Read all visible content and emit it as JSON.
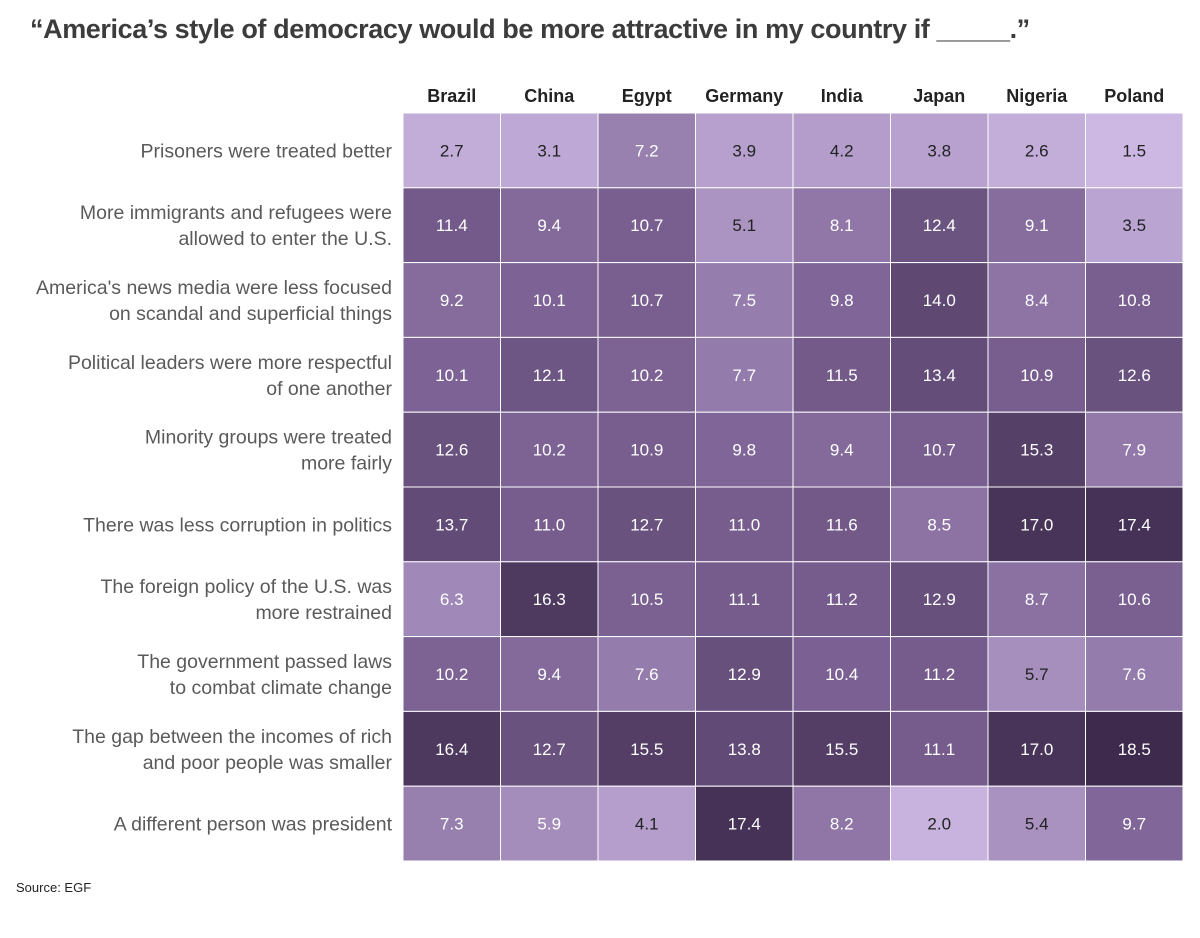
{
  "title": "“America’s style of democracy would be more attractive in my country if _____.”",
  "source": "Source: EGF",
  "chart_data": {
    "type": "heatmap",
    "title": "“America’s style of democracy would be more attractive in my country if _____.”",
    "columns": [
      "Brazil",
      "China",
      "Egypt",
      "Germany",
      "India",
      "Japan",
      "Nigeria",
      "Poland"
    ],
    "rows": [
      {
        "label": [
          "Prisoners were treated better"
        ],
        "values": [
          2.7,
          3.1,
          7.2,
          3.9,
          4.2,
          3.8,
          2.6,
          1.5
        ]
      },
      {
        "label": [
          "More immigrants and refugees were",
          "allowed to enter the U.S."
        ],
        "values": [
          11.4,
          9.4,
          10.7,
          5.1,
          8.1,
          12.4,
          9.1,
          3.5
        ]
      },
      {
        "label": [
          "America's news media were less focused",
          "on scandal and superficial things"
        ],
        "values": [
          9.2,
          10.1,
          10.7,
          7.5,
          9.8,
          14.0,
          8.4,
          10.8
        ]
      },
      {
        "label": [
          "Political leaders were more respectful",
          "of one another"
        ],
        "values": [
          10.1,
          12.1,
          10.2,
          7.7,
          11.5,
          13.4,
          10.9,
          12.6
        ]
      },
      {
        "label": [
          "Minority groups were treated",
          "more fairly"
        ],
        "values": [
          12.6,
          10.2,
          10.9,
          9.8,
          9.4,
          10.7,
          15.3,
          7.9
        ]
      },
      {
        "label": [
          "There was less corruption in politics"
        ],
        "values": [
          13.7,
          11.0,
          12.7,
          11.0,
          11.6,
          8.5,
          17.0,
          17.4
        ]
      },
      {
        "label": [
          "The foreign policy of the U.S. was",
          "more restrained"
        ],
        "values": [
          6.3,
          16.3,
          10.5,
          11.1,
          11.2,
          12.9,
          8.7,
          10.6
        ]
      },
      {
        "label": [
          "The government passed laws",
          "to combat climate change"
        ],
        "values": [
          10.2,
          9.4,
          7.6,
          12.9,
          10.4,
          11.2,
          5.7,
          7.6
        ]
      },
      {
        "label": [
          "The gap between the incomes of rich",
          "and poor people was smaller"
        ],
        "values": [
          16.4,
          12.7,
          15.5,
          13.8,
          15.5,
          11.1,
          17.0,
          18.5
        ]
      },
      {
        "label": [
          "A different person was president"
        ],
        "values": [
          7.3,
          5.9,
          4.1,
          17.4,
          8.2,
          2.0,
          5.4,
          9.7
        ]
      }
    ],
    "value_format": "one-decimal",
    "color_scale": {
      "low": "#cdb8e3",
      "mid": "#7e6496",
      "high": "#3d2a4c",
      "domain": [
        1.5,
        18.5
      ]
    }
  }
}
